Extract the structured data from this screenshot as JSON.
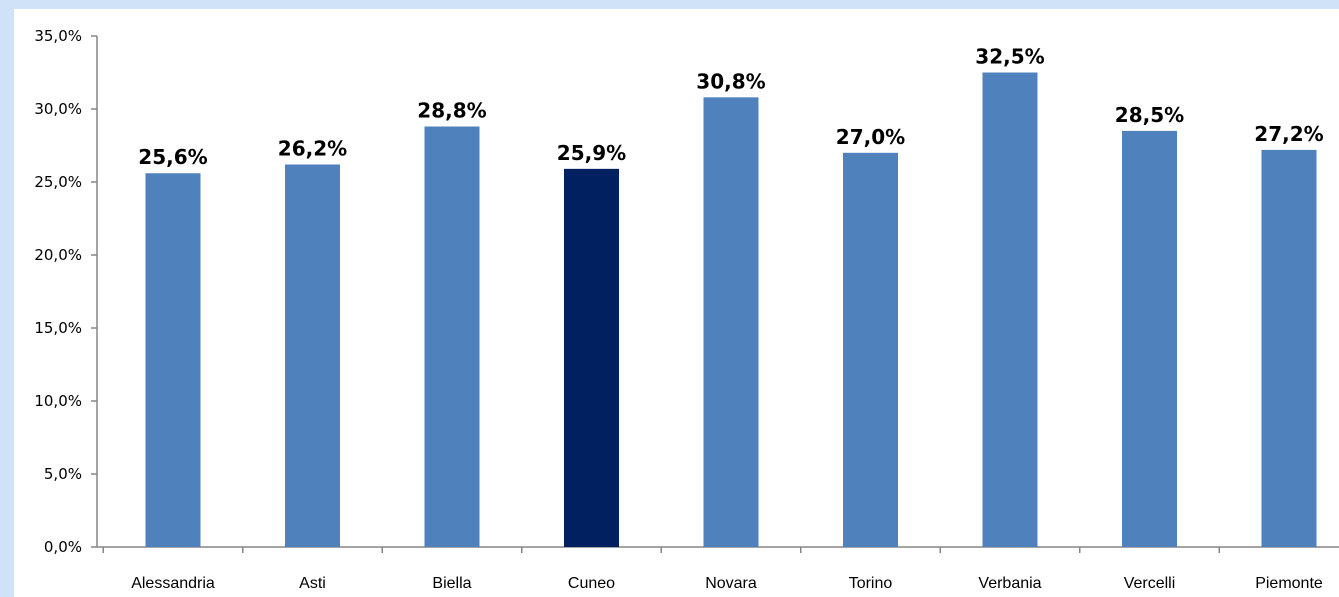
{
  "chart_data": {
    "type": "bar",
    "categories": [
      "Alessandria",
      "Asti",
      "Biella",
      "Cuneo",
      "Novara",
      "Torino",
      "Verbania",
      "Vercelli",
      "Piemonte"
    ],
    "values": [
      25.6,
      26.2,
      28.8,
      25.9,
      30.8,
      27.0,
      32.5,
      28.5,
      27.2
    ],
    "value_labels": [
      "25,6%",
      "26,2%",
      "28,8%",
      "25,9%",
      "30,8%",
      "27,0%",
      "32,5%",
      "28,5%",
      "27,2%"
    ],
    "yticks": [
      "0,0%",
      "5,0%",
      "10,0%",
      "15,0%",
      "20,0%",
      "25,0%",
      "30,0%",
      "35,0%"
    ],
    "ylim": [
      0,
      35
    ],
    "grid": false,
    "colors": {
      "bar": "#4f81bd",
      "highlight": "#002060",
      "axis": "#868686",
      "background": "#ffffff",
      "outer": "#cfe2f7"
    },
    "highlight_category": "Cuneo"
  }
}
